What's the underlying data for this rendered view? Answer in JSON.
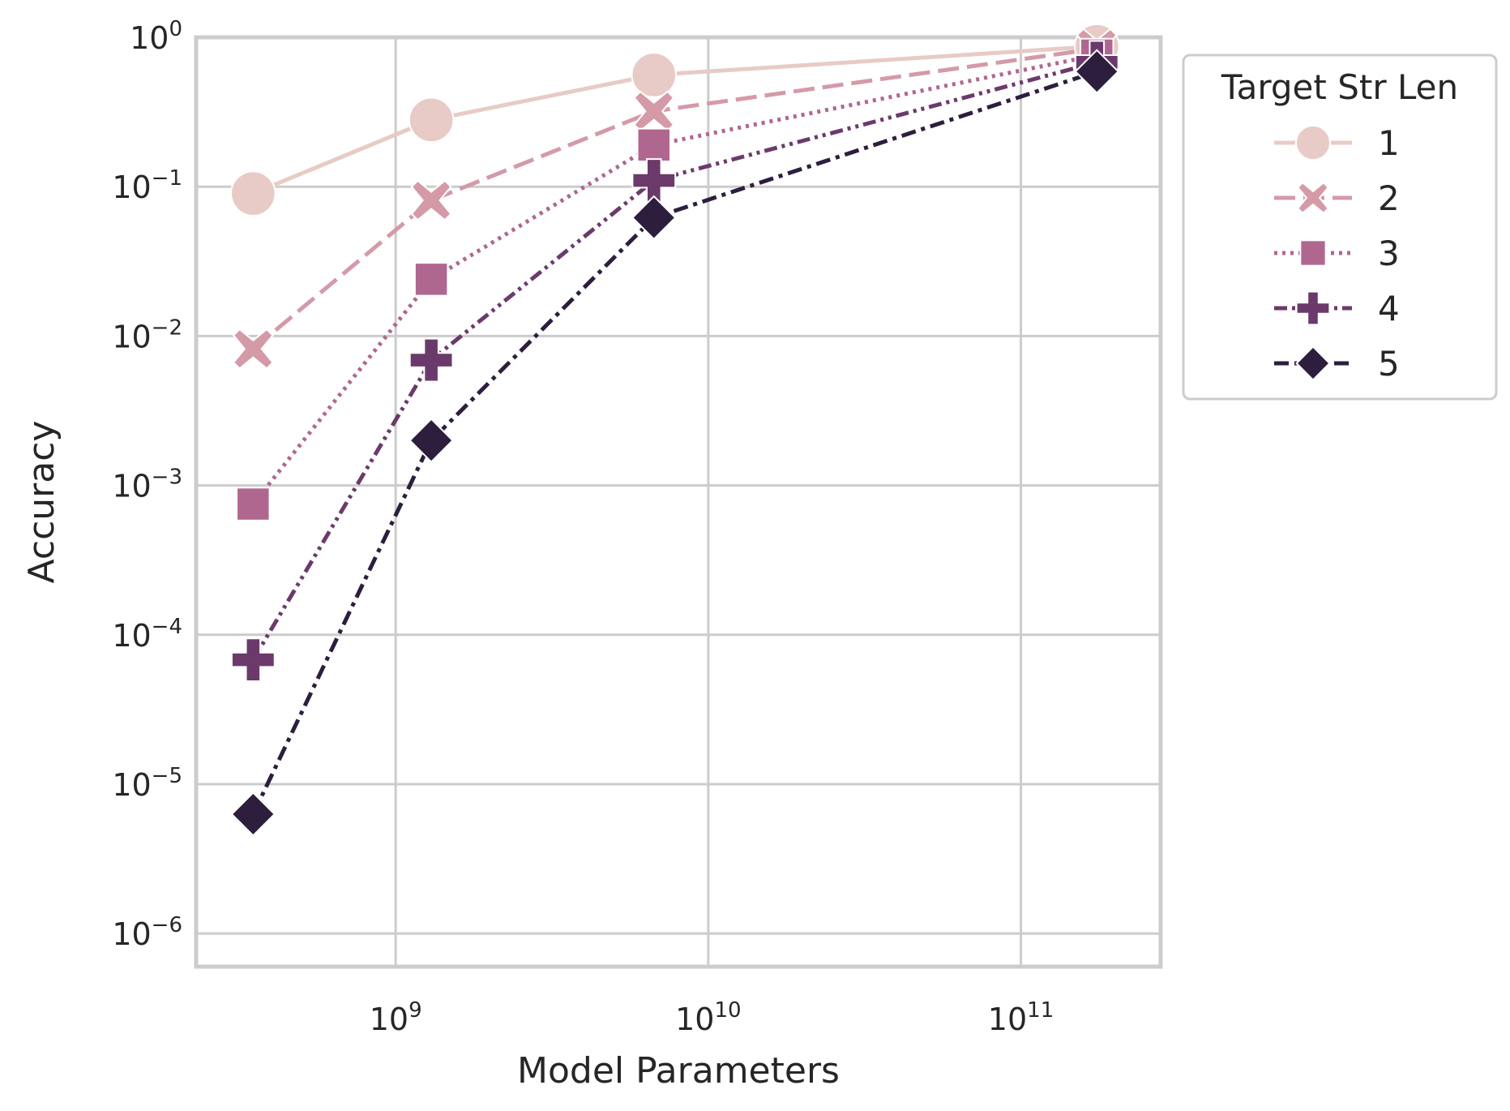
{
  "chart_data": {
    "type": "line",
    "xlabel": "Model Parameters",
    "ylabel": "Accuracy",
    "x_scale": "log",
    "y_scale": "log",
    "xlim": [
      230000000.0,
      280000000000.0
    ],
    "ylim": [
      6e-07,
      1.0
    ],
    "x_ticks": [
      {
        "value": 1000000000.0,
        "base": "10",
        "exp": "9"
      },
      {
        "value": 10000000000.0,
        "base": "10",
        "exp": "10"
      },
      {
        "value": 100000000000.0,
        "base": "10",
        "exp": "11"
      }
    ],
    "y_ticks": [
      {
        "value": 1e-06,
        "base": "10",
        "exp": "−6"
      },
      {
        "value": 1e-05,
        "base": "10",
        "exp": "−5"
      },
      {
        "value": 0.0001,
        "base": "10",
        "exp": "−4"
      },
      {
        "value": 0.001,
        "base": "10",
        "exp": "−3"
      },
      {
        "value": 0.01,
        "base": "10",
        "exp": "−2"
      },
      {
        "value": 0.1,
        "base": "10",
        "exp": "−1"
      },
      {
        "value": 1.0,
        "base": "10",
        "exp": "0"
      }
    ],
    "grid": true,
    "legend": {
      "title": "Target Str Len",
      "placement": "outside-top-right"
    },
    "x": [
      350000000.0,
      1300000000.0,
      6700000000.0,
      175000000000.0
    ],
    "series": [
      {
        "name": "1",
        "values": [
          0.09,
          0.28,
          0.56,
          0.87
        ],
        "color": "#e8cbc6",
        "dash": "solid",
        "marker": "circle"
      },
      {
        "name": "2",
        "values": [
          0.0082,
          0.081,
          0.32,
          0.84
        ],
        "color": "#d49aa8",
        "dash": "dashed",
        "marker": "x"
      },
      {
        "name": "3",
        "values": [
          0.00075,
          0.024,
          0.19,
          0.76
        ],
        "color": "#b0678f",
        "dash": "dotted",
        "marker": "square"
      },
      {
        "name": "4",
        "values": [
          6.8e-05,
          0.0069,
          0.11,
          0.68
        ],
        "color": "#6b3a6b",
        "dash": "dashdotdot",
        "marker": "plus"
      },
      {
        "name": "5",
        "values": [
          6.3e-06,
          0.002,
          0.062,
          0.59
        ],
        "color": "#2d1e3e",
        "dash": "dashdot",
        "marker": "diamond"
      }
    ]
  }
}
